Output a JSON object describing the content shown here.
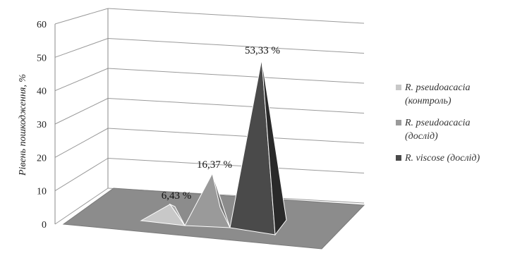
{
  "chart_data": {
    "type": "bar",
    "style": "3d-pyramid",
    "ylabel": "Рівень пошкодження, %",
    "ylim": [
      0,
      60
    ],
    "yticks": [
      "0",
      "10",
      "20",
      "30",
      "40",
      "50",
      "60"
    ],
    "grid": true,
    "legend_position": "right",
    "series": [
      {
        "name_lines": [
          "R. pseudoacacia",
          "(контроль)"
        ],
        "value": 6.43,
        "label": "6,43 %",
        "color": "#c8c8c8",
        "shade": "#a9a9a9"
      },
      {
        "name_lines": [
          "R. pseudoacacia",
          "(дослід)"
        ],
        "value": 16.37,
        "label": "16,37 %",
        "color": "#9a9a9a",
        "shade": "#787878"
      },
      {
        "name_lines": [
          "R. viscose (дослід)"
        ],
        "value": 53.33,
        "label": "53,33 %",
        "color": "#4a4a4a",
        "shade": "#2a2a2a"
      }
    ],
    "floor_color": "#8c8c8c"
  }
}
